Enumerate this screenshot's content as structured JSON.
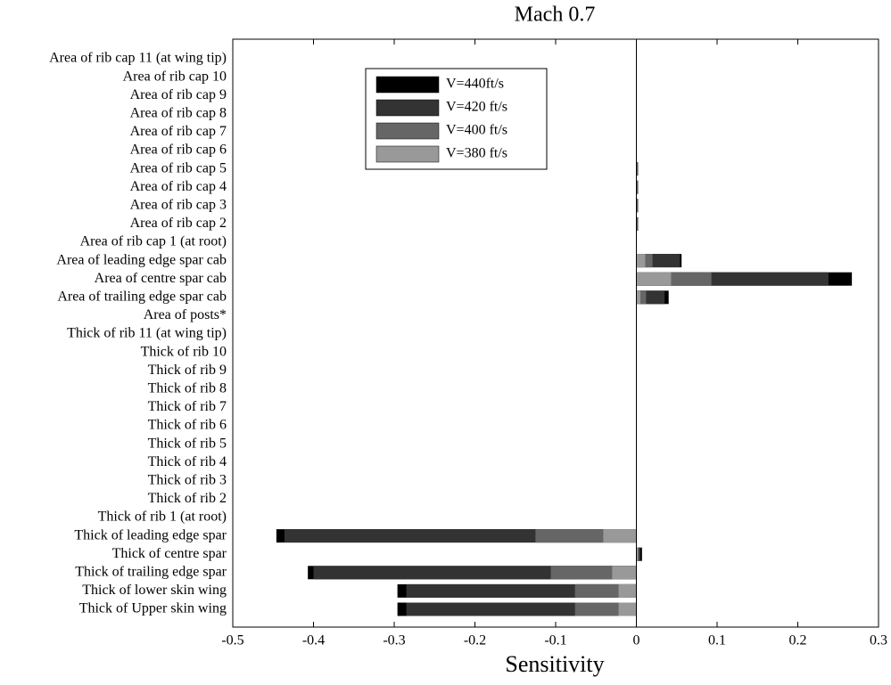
{
  "chart_data": {
    "type": "hbar_overlap",
    "title": "Mach 0.7",
    "x_label": "Sensitivity",
    "categories": [
      "Area of rib cap 11 (at wing tip)",
      "Area of rib cap 10",
      "Area of rib cap 9",
      "Area of rib cap 8",
      "Area of rib cap 7",
      "Area of rib cap 6",
      "Area of rib cap 5",
      "Area of rib cap 4",
      "Area of rib cap 3",
      "Area of rib cap 2",
      "Area of rib cap 1 (at root)",
      "Area of leading edge spar cab",
      "Area of centre spar cab",
      "Area of trailing edge spar cab",
      "Area of posts*",
      "Thick of rib 11 (at wing tip)",
      "Thick of rib 10",
      "Thick of rib 9",
      "Thick of rib 8",
      "Thick of rib 7",
      "Thick of rib 6",
      "Thick of rib 5",
      "Thick of rib 4",
      "Thick of rib 3",
      "Thick of rib 2",
      "Thick of rib 1 (at root)",
      "Thick of leading edge spar",
      "Thick of centre spar",
      "Thick of trailing edge spar",
      "Thick of lower skin wing",
      "Thick of Upper skin wing"
    ],
    "series": [
      {
        "name": "V=440ft/s",
        "color": "#000000",
        "values": [
          0,
          0,
          0,
          0,
          0,
          0,
          0.002,
          0.002,
          0.002,
          0.002,
          0,
          0.056,
          0.267,
          0.04,
          0,
          0,
          0,
          0,
          0,
          0,
          0,
          0,
          0,
          0,
          0,
          0,
          -0.446,
          0.007,
          -0.407,
          -0.296,
          -0.296
        ]
      },
      {
        "name": "V=420 ft/s",
        "color": "#333333",
        "values": [
          0,
          0,
          0,
          0,
          0,
          0,
          0.002,
          0.002,
          0.002,
          0.002,
          0,
          0.054,
          0.238,
          0.035,
          0,
          0,
          0,
          0,
          0,
          0,
          0,
          0,
          0,
          0,
          0,
          0,
          -0.436,
          0.005,
          -0.4,
          -0.285,
          -0.285
        ]
      },
      {
        "name": "V=400 ft/s",
        "color": "#666666",
        "values": [
          0,
          0,
          0,
          0,
          0,
          0,
          0.001,
          0.001,
          0.001,
          0.001,
          0,
          0.02,
          0.093,
          0.012,
          0,
          0,
          0,
          0,
          0,
          0,
          0,
          0,
          0,
          0,
          0,
          0,
          -0.125,
          0.003,
          -0.106,
          -0.076,
          -0.076
        ]
      },
      {
        "name": "V=380 ft/s",
        "color": "#999999",
        "values": [
          0,
          0,
          0,
          0,
          0,
          0,
          0.001,
          0.001,
          0.001,
          0.001,
          0,
          0.011,
          0.043,
          0.005,
          0,
          0,
          0,
          0,
          0,
          0,
          0,
          0,
          0,
          0,
          0,
          0,
          -0.041,
          0.002,
          -0.03,
          -0.022,
          -0.022
        ]
      }
    ],
    "xlim": [
      -0.5,
      0.3
    ],
    "xticks": [
      -0.5,
      -0.4,
      -0.3,
      -0.2,
      -0.1,
      0,
      0.1,
      0.2,
      0.3
    ]
  }
}
